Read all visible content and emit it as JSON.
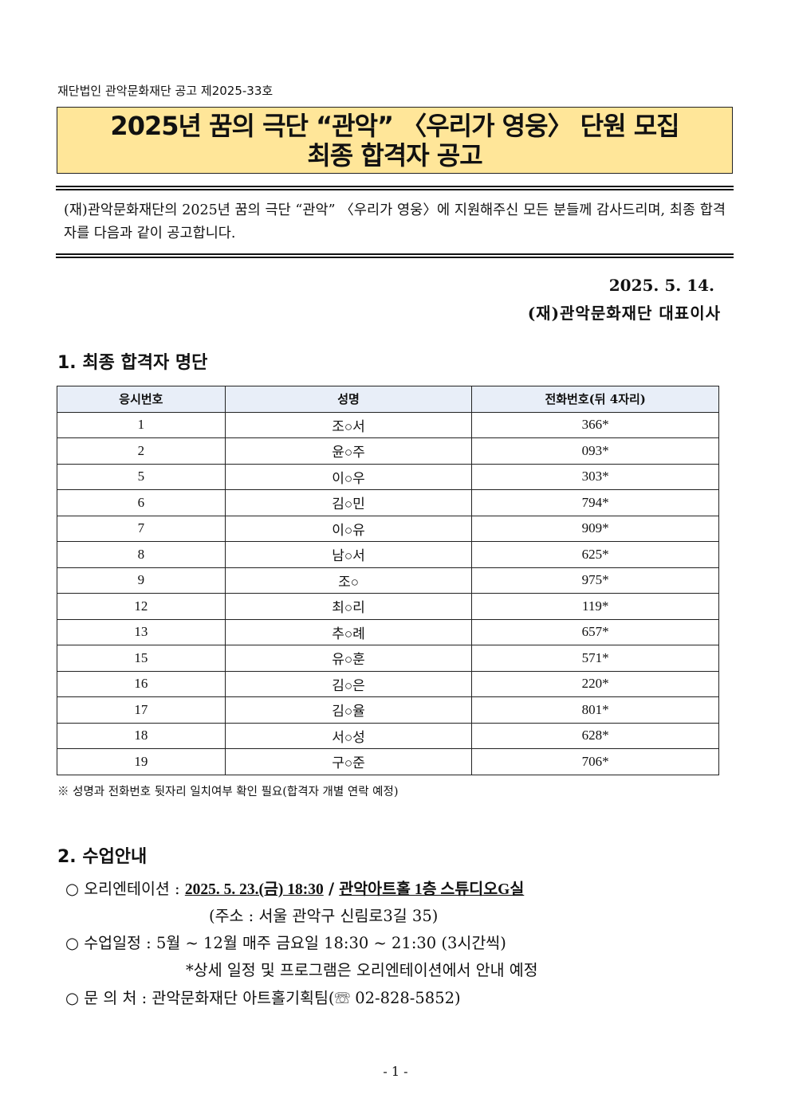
{
  "notice_number": "재단법인 관악문화재단 공고 제2025-33호",
  "title": {
    "line1": "2025년 꿈의 극단 “관악” 〈우리가 영웅〉 단원 모집",
    "line2": "최종 합격자 공고"
  },
  "intro": "(재)관악문화재단의 2025년 꿈의 극단 “관악” 〈우리가 영웅〉에 지원해주신 모든 분들께 감사드리며, 최종 합격자를 다음과 같이 공고합니다.",
  "date": "2025. 5. 14.",
  "signature": "(재)관악문화재단 대표이사",
  "section1": {
    "heading": "1. 최종 합격자 명단",
    "columns": [
      "응시번호",
      "성명",
      "전화번호(뒤 4자리)"
    ],
    "rows": [
      [
        "1",
        "조○서",
        "366*"
      ],
      [
        "2",
        "윤○주",
        "093*"
      ],
      [
        "5",
        "이○우",
        "303*"
      ],
      [
        "6",
        "김○민",
        "794*"
      ],
      [
        "7",
        "이○유",
        "909*"
      ],
      [
        "8",
        "남○서",
        "625*"
      ],
      [
        "9",
        "조○",
        "975*"
      ],
      [
        "12",
        "최○리",
        "119*"
      ],
      [
        "13",
        "추○례",
        "657*"
      ],
      [
        "15",
        "유○훈",
        "571*"
      ],
      [
        "16",
        "김○은",
        "220*"
      ],
      [
        "17",
        "김○율",
        "801*"
      ],
      [
        "18",
        "서○성",
        "628*"
      ],
      [
        "19",
        "구○준",
        "706*"
      ]
    ],
    "note": "※ 성명과 전화번호 뒷자리 일치여부 확인 필요(합격자 개별 연락 예정)"
  },
  "section2": {
    "heading": "2. 수업안내",
    "orientation": {
      "label": "○ 오리엔테이션 :",
      "datetime": "2025. 5. 23.(금) 18:30",
      "sep": "/",
      "place": "관악아트홀 1층 스튜디오G실",
      "address": "(주소 : 서울 관악구 신림로3길 35)"
    },
    "schedule": {
      "label": "○ 수업일정 :",
      "value": "5월 ~ 12월 매주 금요일 18:30 ~ 21:30 (3시간씩)",
      "sub": "*상세 일정 및 프로그램은 오리엔테이션에서 안내 예정"
    },
    "contact": {
      "label": "○ 문 의 처 :",
      "value": "관악문화재단 아트홀기획팀(☏ 02-828-5852)"
    }
  },
  "page_number": "- 1 -"
}
